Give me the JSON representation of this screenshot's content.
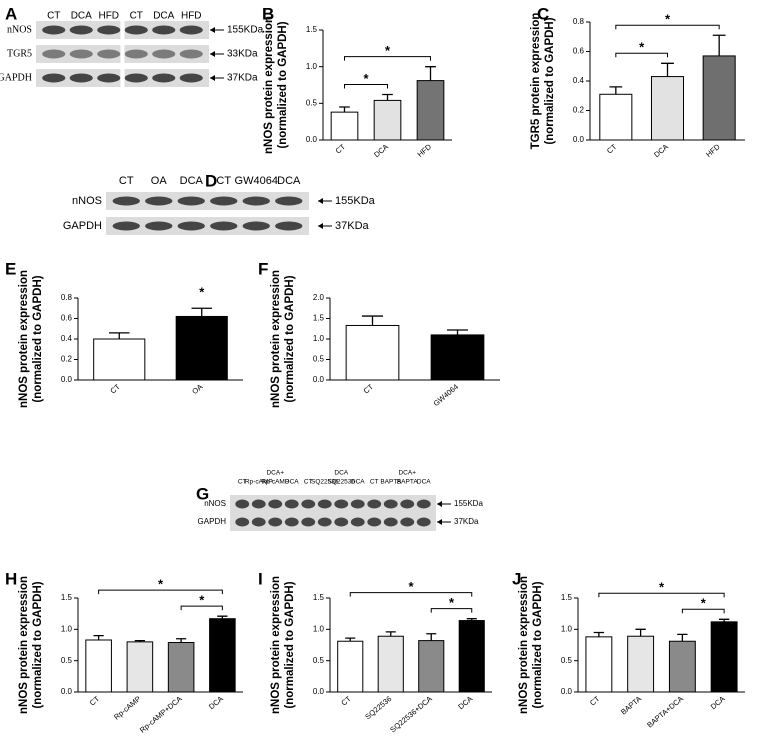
{
  "panel_labels": [
    "A",
    "B",
    "C",
    "D",
    "E",
    "F",
    "G",
    "H",
    "I",
    "J"
  ],
  "blots": [
    {
      "lanes": [
        [
          "CT"
        ],
        [
          "DCA"
        ],
        [
          "HFD"
        ],
        [
          "CT"
        ],
        [
          "DCA"
        ],
        [
          "HFD"
        ]
      ],
      "rows": [
        "nNOS",
        "TGR5",
        "GAPDH"
      ],
      "sizes": [
        "155KDa",
        "33KDa",
        "37KDa"
      ]
    },
    {
      "lanes": [
        [
          "CT"
        ],
        [
          "OA"
        ],
        [
          "DCA"
        ],
        [
          "CT"
        ],
        [
          "GW4064"
        ],
        [
          "DCA"
        ]
      ],
      "rows": [
        "nNOS",
        "GAPDH"
      ],
      "sizes": [
        "155KDa",
        "37KDa"
      ]
    },
    {
      "lanes": [
        [
          "CT"
        ],
        [
          "Rp-cAMP"
        ],
        [
          "DCA+",
          "Rp-cAMP"
        ],
        [
          "DCA"
        ],
        [
          "CT"
        ],
        [
          "SQ22536"
        ],
        [
          "DCA",
          "SQ22536"
        ],
        [
          "DCA"
        ],
        [
          "CT"
        ],
        [
          "BAPTA"
        ],
        [
          "DCA+",
          "BAPTA"
        ],
        [
          "DCA"
        ]
      ],
      "rows": [
        "nNOS",
        "GAPDH"
      ],
      "sizes": [
        "155KDa",
        "37KDa"
      ]
    }
  ],
  "chart_data": [
    {
      "type": "bar",
      "ylabel": [
        "nNOS protein expression",
        "(normalized to GAPDH)"
      ],
      "categories": [
        "CT",
        "DCA",
        "HFD"
      ],
      "values": [
        0.38,
        0.54,
        0.81
      ],
      "errors": [
        0.07,
        0.08,
        0.19
      ],
      "colors": [
        "#ffffff",
        "#e2e2e2",
        "#747474"
      ],
      "ylim": [
        0,
        1.5
      ],
      "yticks": [
        {
          "value": 0,
          "label": "0.0"
        },
        0.5,
        {
          "value": 1,
          "label": "1.0"
        },
        1.5
      ],
      "significance": [
        {
          "label": "*",
          "pair": [
            "CT",
            "DCA"
          ]
        },
        {
          "label": "*",
          "pair": [
            "CT",
            "HFD"
          ]
        }
      ]
    },
    {
      "type": "bar",
      "ylabel": [
        "TGR5 protein expression",
        "(normalized to GAPDH)"
      ],
      "categories": [
        "CT",
        "DCA",
        "HFD"
      ],
      "values": [
        0.31,
        0.43,
        0.57
      ],
      "errors": [
        0.05,
        0.09,
        0.14
      ],
      "colors": [
        "#ffffff",
        "#e2e2e2",
        "#6f6f6f"
      ],
      "ylim": [
        0,
        0.8
      ],
      "yticks": [
        {
          "value": 0,
          "label": "0.0"
        },
        0.2,
        0.4,
        0.6,
        0.8
      ],
      "significance": [
        {
          "label": "*",
          "pair": [
            "CT",
            "DCA"
          ]
        },
        {
          "label": "*",
          "pair": [
            "CT",
            "HFD"
          ]
        }
      ]
    },
    {
      "type": "bar",
      "ylabel": [
        "nNOS protein expression",
        "(normalized to GAPDH)"
      ],
      "categories": [
        "CT",
        "OA"
      ],
      "values": [
        0.4,
        0.62
      ],
      "errors": [
        0.06,
        0.08
      ],
      "colors": [
        "#ffffff",
        "#000000"
      ],
      "ylim": [
        0,
        0.8
      ],
      "yticks": [
        {
          "value": 0,
          "label": "0.0"
        },
        0.2,
        0.4,
        0.6,
        0.8
      ],
      "significance": [
        {
          "label": "*",
          "pair": [
            "OA",
            "OA"
          ]
        }
      ]
    },
    {
      "type": "bar",
      "ylabel": [
        "nNOS protein expression",
        "(normalized to GAPDH)"
      ],
      "categories": [
        "CT",
        "GW4064"
      ],
      "values": [
        1.33,
        1.1
      ],
      "errors": [
        0.23,
        0.12
      ],
      "colors": [
        "#ffffff",
        "#000000"
      ],
      "ylim": [
        0,
        2
      ],
      "yticks": [
        {
          "value": 0,
          "label": "0.0"
        },
        0.5,
        {
          "value": 1,
          "label": "1.0"
        },
        1.5,
        {
          "value": 2,
          "label": "2.0"
        }
      ],
      "significance": []
    },
    {
      "type": "bar",
      "ylabel": [
        "nNOS protein expression",
        "(normalized to GAPDH)"
      ],
      "categories": [
        "CT",
        "Rp-cAMP",
        "Rp-cAMP+DCA",
        "DCA"
      ],
      "values": [
        0.83,
        0.8,
        0.79,
        1.17
      ],
      "errors": [
        0.07,
        0.02,
        0.06,
        0.04
      ],
      "colors": [
        "#ffffff",
        "#e6e6e6",
        "#8a8a8a",
        "#000000"
      ],
      "ylim": [
        0,
        1.5
      ],
      "yticks": [
        {
          "value": 0,
          "label": "0.0"
        },
        0.5,
        {
          "value": 1,
          "label": "1.0"
        },
        1.5
      ],
      "significance": [
        {
          "label": "*",
          "pair": [
            "Rp-cAMP+DCA",
            "DCA"
          ]
        },
        {
          "label": "*",
          "pair": [
            "CT",
            "DCA"
          ]
        }
      ]
    },
    {
      "type": "bar",
      "ylabel": [
        "nNOS protein expression",
        "(normalized to GAPDH)"
      ],
      "categories": [
        "CT",
        "SQ22536",
        "SQ22536+DCA",
        "DCA"
      ],
      "values": [
        0.81,
        0.89,
        0.82,
        1.14
      ],
      "errors": [
        0.05,
        0.07,
        0.11,
        0.03
      ],
      "colors": [
        "#ffffff",
        "#e6e6e6",
        "#8a8a8a",
        "#000000"
      ],
      "ylim": [
        0,
        1.5
      ],
      "yticks": [
        {
          "value": 0,
          "label": "0.0"
        },
        0.5,
        {
          "value": 1,
          "label": "1.0"
        },
        1.5
      ],
      "significance": [
        {
          "label": "*",
          "pair": [
            "SQ22536+DCA",
            "DCA"
          ]
        },
        {
          "label": "*",
          "pair": [
            "CT",
            "DCA"
          ]
        }
      ]
    },
    {
      "type": "bar",
      "ylabel": [
        "nNOS protein expression",
        "(normalized to GAPDH)"
      ],
      "categories": [
        "CT",
        "BAPTA",
        "BAPTA+DCA",
        "DCA"
      ],
      "values": [
        0.88,
        0.89,
        0.81,
        1.12
      ],
      "errors": [
        0.07,
        0.11,
        0.11,
        0.04
      ],
      "colors": [
        "#ffffff",
        "#e6e6e6",
        "#8a8a8a",
        "#000000"
      ],
      "ylim": [
        0,
        1.5
      ],
      "yticks": [
        {
          "value": 0,
          "label": "0.0"
        },
        0.5,
        {
          "value": 1,
          "label": "1.0"
        },
        1.5
      ],
      "significance": [
        {
          "label": "*",
          "pair": [
            "BAPTA+DCA",
            "DCA"
          ]
        },
        {
          "label": "*",
          "pair": [
            "CT",
            "DCA"
          ]
        }
      ]
    }
  ]
}
